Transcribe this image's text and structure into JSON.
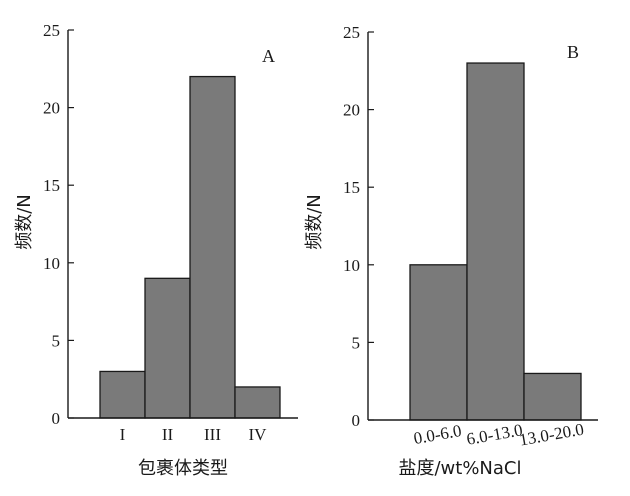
{
  "chart_data": [
    {
      "type": "bar",
      "panel_label": "A",
      "categories": [
        "I",
        "II",
        "III",
        "IV"
      ],
      "values": [
        3,
        9,
        22,
        2
      ],
      "xlabel": "包裹体类型",
      "ylabel": "频数/N",
      "ylim": [
        0,
        25
      ],
      "yticks": [
        0,
        5,
        10,
        15,
        20,
        25
      ],
      "grid": false,
      "bar_color": "#7a7a7a"
    },
    {
      "type": "bar",
      "panel_label": "B",
      "categories": [
        "0.0-6.0",
        "6.0-13.0",
        "13.0-20.0"
      ],
      "values": [
        10,
        23,
        3
      ],
      "xlabel": "盐度/wt%NaCl",
      "ylabel": "频数/N",
      "ylim": [
        0,
        25
      ],
      "yticks": [
        0,
        5,
        10,
        15,
        20,
        25
      ],
      "grid": false,
      "bar_color": "#7a7a7a"
    }
  ]
}
